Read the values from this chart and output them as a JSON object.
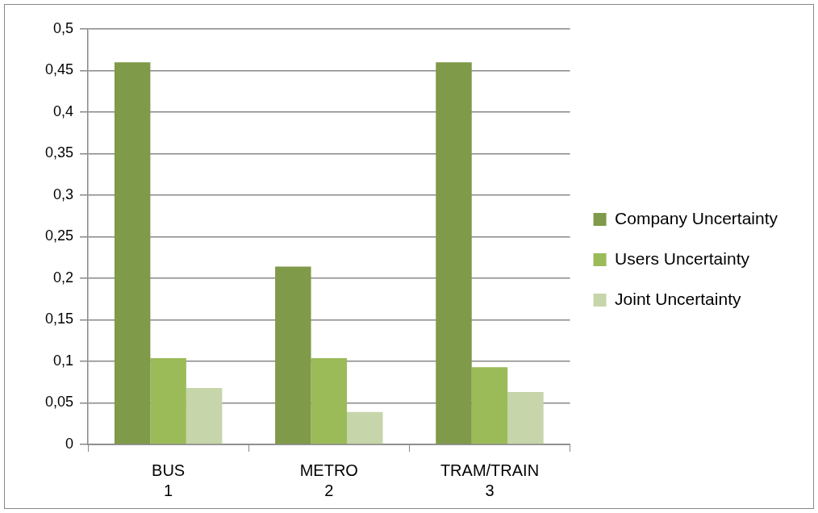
{
  "chart_data": {
    "type": "bar",
    "categories": [
      "BUS",
      "METRO",
      "TRAM/TRAIN"
    ],
    "series": [
      {
        "name": "Company Uncertainty",
        "color": "#7f9a48",
        "values": [
          0.46,
          0.214,
          0.46
        ]
      },
      {
        "name": "Users Uncertainty",
        "color": "#9bbb59",
        "values": [
          0.104,
          0.104,
          0.093
        ]
      },
      {
        "name": "Joint Uncertainty",
        "color": "#c6d5aa",
        "values": [
          0.068,
          0.039,
          0.063
        ]
      }
    ],
    "ylim": [
      0,
      0.5
    ],
    "yticks": [
      0,
      {
        "value": 0.05,
        "label": "0,05"
      },
      {
        "value": 0.1,
        "label": "0,1"
      },
      {
        "value": 0.15,
        "label": "0,15"
      },
      {
        "value": 0.2,
        "label": "0,2"
      },
      {
        "value": 0.25,
        "label": "0,25"
      },
      {
        "value": 0.3,
        "label": "0,3"
      },
      {
        "value": 0.35,
        "label": "0,35"
      },
      {
        "value": 0.4,
        "label": "0,4"
      },
      {
        "value": 0.45,
        "label": "0,45"
      },
      {
        "value": 0.5,
        "label": "0,5"
      }
    ],
    "x2lim": [
      0.5,
      3.5
    ],
    "x2ticks": [
      1,
      2,
      3
    ],
    "grid": "y",
    "legend": "right"
  }
}
